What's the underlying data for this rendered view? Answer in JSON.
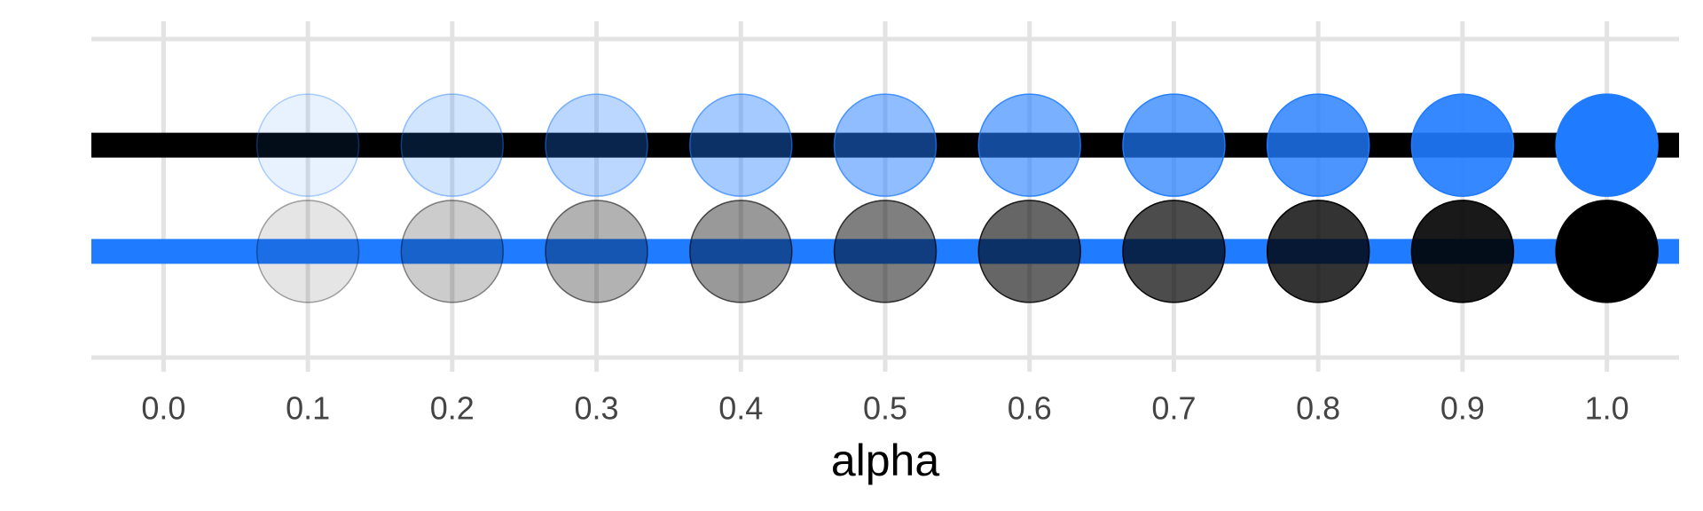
{
  "chart_data": {
    "type": "scatter",
    "x_label": "alpha",
    "xlim": [
      -0.05,
      1.05
    ],
    "xticks": [
      {
        "value": 0,
        "label": "0.0"
      },
      0.1,
      0.2,
      0.3,
      0.4,
      0.5,
      0.6,
      0.7,
      0.8,
      0.9,
      {
        "value": 1,
        "label": "1.0"
      }
    ],
    "ylim": [
      0,
      3
    ],
    "grid": true,
    "lines": [
      {
        "color": "#000000",
        "y": 2
      },
      {
        "color": "#1f7bff",
        "y": 1
      }
    ],
    "series": [
      {
        "color": "#1f7bff",
        "x": [
          0.1,
          0.2,
          0.3,
          0.4,
          0.5,
          0.6,
          0.7,
          0.8,
          0.9,
          1.0
        ],
        "values": [
          2,
          2,
          2,
          2,
          2,
          2,
          2,
          2,
          2,
          2
        ]
      },
      {
        "color": "#000000",
        "x": [
          0.1,
          0.2,
          0.3,
          0.4,
          0.5,
          0.6,
          0.7,
          0.8,
          0.9,
          1.0
        ],
        "values": [
          1,
          1,
          1,
          1,
          1,
          1,
          1,
          1,
          1,
          1
        ]
      }
    ]
  }
}
